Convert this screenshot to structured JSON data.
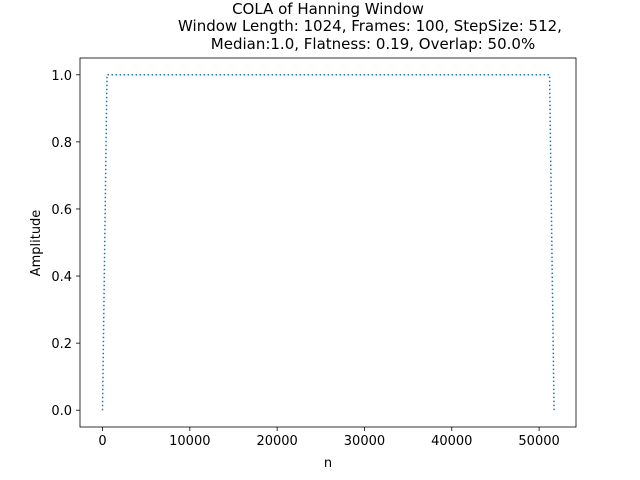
{
  "chart_data": {
    "type": "line",
    "title_lines": [
      "COLA of Hanning Window",
      "Window Length: 1024, Frames: 100, StepSize: 512,",
      "Median:1.0, Flatness: 0.19, Overlap: 50.0%"
    ],
    "xlabel": "n",
    "ylabel": "Amplitude",
    "xlim": [
      -2578,
      54226
    ],
    "ylim": [
      -0.05,
      1.05
    ],
    "xticks": [
      0,
      10000,
      20000,
      30000,
      40000,
      50000
    ],
    "xtick_labels": [
      "0",
      "10000",
      "20000",
      "30000",
      "40000",
      "50000"
    ],
    "yticks": [
      0.0,
      0.2,
      0.4,
      0.6,
      0.8,
      1.0
    ],
    "ytick_labels": [
      "0.0",
      "0.2",
      "0.4",
      "0.6",
      "0.8",
      "1.0"
    ],
    "grid": false,
    "series": [
      {
        "line_style": "dotted",
        "color": "#1f77b4",
        "x": [
          0,
          512,
          51200,
          51712
        ],
        "y": [
          0.0,
          1.0,
          1.0,
          0.0
        ]
      }
    ]
  }
}
